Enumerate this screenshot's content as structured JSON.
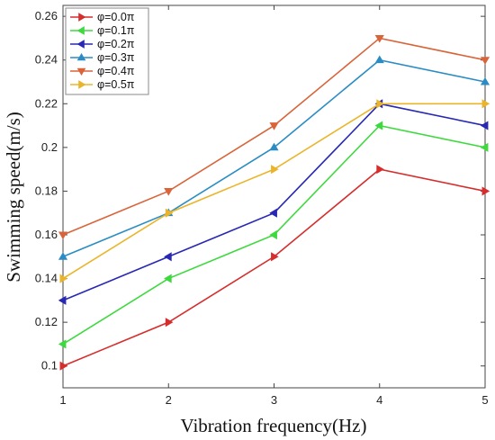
{
  "chart_data": {
    "type": "line",
    "title": "",
    "xlabel": "Vibration frequency(Hz)",
    "ylabel": "Swimming speed(m/s)",
    "x": [
      1,
      2,
      3,
      4,
      5
    ],
    "x_ticks": [
      "1",
      "2",
      "3",
      "4",
      "5"
    ],
    "y_ticks": [
      "0.1",
      "0.12",
      "0.14",
      "0.16",
      "0.18",
      "0.2",
      "0.22",
      "0.24",
      "0.26"
    ],
    "xlim": [
      1,
      5
    ],
    "ylim": [
      0.09,
      0.265
    ],
    "grid": false,
    "legend_position": "top-left",
    "series": [
      {
        "name": "φ=0.0π",
        "values": [
          0.1,
          0.12,
          0.15,
          0.19,
          0.18
        ],
        "color": "#d62d2d",
        "marker": "triangle-right"
      },
      {
        "name": "φ=0.1π",
        "values": [
          0.11,
          0.14,
          0.16,
          0.21,
          0.2
        ],
        "color": "#3ed93e",
        "marker": "triangle-left"
      },
      {
        "name": "φ=0.2π",
        "values": [
          0.13,
          0.15,
          0.17,
          0.22,
          0.21
        ],
        "color": "#2828b4",
        "marker": "triangle-left"
      },
      {
        "name": "φ=0.3π",
        "values": [
          0.15,
          0.17,
          0.2,
          0.24,
          0.23
        ],
        "color": "#2b8cc4",
        "marker": "triangle-up"
      },
      {
        "name": "φ=0.4π",
        "values": [
          0.16,
          0.18,
          0.21,
          0.25,
          0.24
        ],
        "color": "#d9643a",
        "marker": "triangle-down"
      },
      {
        "name": "φ=0.5π",
        "values": [
          0.14,
          0.17,
          0.19,
          0.22,
          0.22
        ],
        "color": "#eab52a",
        "marker": "triangle-right"
      }
    ]
  }
}
